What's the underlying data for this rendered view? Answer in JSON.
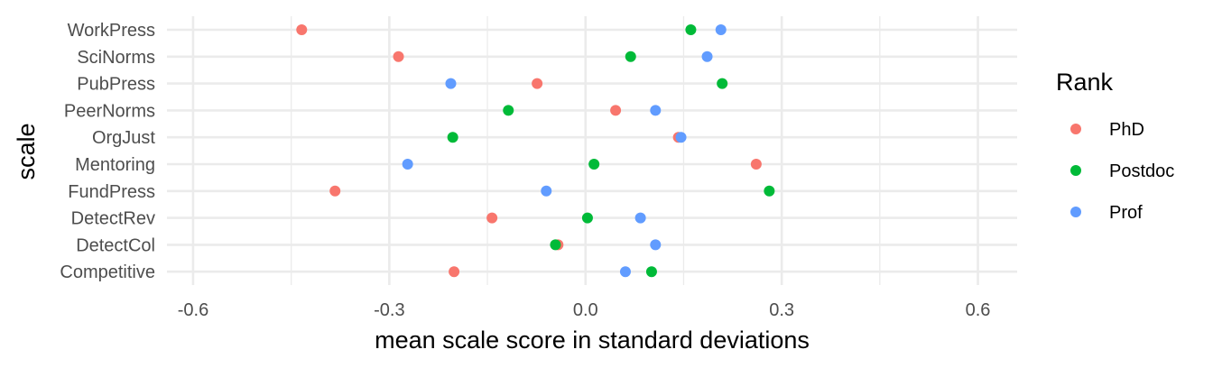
{
  "chart_data": {
    "type": "scatter",
    "title": "",
    "xlabel": "mean scale score in standard deviations",
    "ylabel": "scale",
    "xlim": [
      -0.64,
      0.66
    ],
    "x_ticks": [
      -0.6,
      -0.3,
      0.0,
      0.3,
      0.6
    ],
    "x_tick_labels": [
      "-0.6",
      "-0.3",
      "0.0",
      "0.3",
      "0.6"
    ],
    "categories": [
      "WorkPress",
      "SciNorms",
      "PubPress",
      "PeerNorms",
      "OrgJust",
      "Mentoring",
      "FundPress",
      "DetectRev",
      "DetectCol",
      "Competitive"
    ],
    "grid": true,
    "legend": {
      "title": "Rank",
      "position": "right"
    },
    "series": [
      {
        "name": "PhD",
        "color": "#F8766D",
        "values": [
          -0.434,
          -0.286,
          -0.074,
          0.046,
          0.142,
          0.261,
          -0.383,
          -0.143,
          -0.042,
          -0.201
        ]
      },
      {
        "name": "Postdoc",
        "color": "#00BA38",
        "values": [
          0.161,
          0.069,
          0.209,
          -0.118,
          -0.203,
          0.013,
          0.281,
          0.003,
          -0.046,
          0.101
        ]
      },
      {
        "name": "Prof",
        "color": "#619CFF",
        "values": [
          0.207,
          0.186,
          -0.206,
          0.107,
          0.146,
          -0.272,
          -0.06,
          0.084,
          0.107,
          0.061
        ]
      }
    ]
  }
}
